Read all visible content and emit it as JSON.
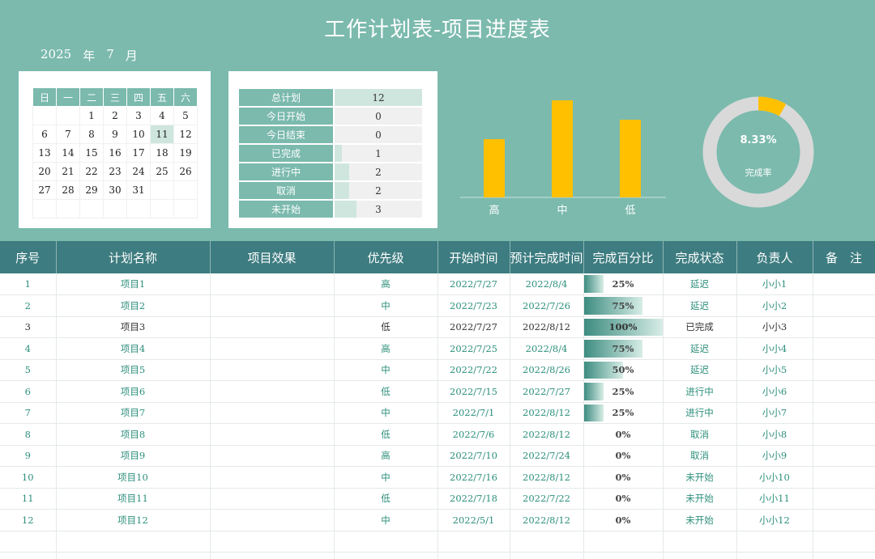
{
  "title": "工作计划表-项目进度表",
  "year": "2025",
  "year_unit": "年",
  "month": "7",
  "month_unit": "月",
  "calendar": {
    "weekdays": [
      "日",
      "一",
      "二",
      "三",
      "四",
      "五",
      "六"
    ],
    "weeks": [
      [
        "",
        "",
        "1",
        "2",
        "3",
        "4",
        "5"
      ],
      [
        "6",
        "7",
        "8",
        "9",
        "10",
        "11",
        "12"
      ],
      [
        "13",
        "14",
        "15",
        "16",
        "17",
        "18",
        "19"
      ],
      [
        "20",
        "21",
        "22",
        "23",
        "24",
        "25",
        "26"
      ],
      [
        "27",
        "28",
        "29",
        "30",
        "31",
        "",
        ""
      ],
      [
        "",
        "",
        "",
        "",
        "",
        "",
        ""
      ]
    ],
    "today": "11"
  },
  "summary": [
    {
      "label": "总计划",
      "value": "12",
      "fraction": 1.0
    },
    {
      "label": "今日开始",
      "value": "0",
      "fraction": 0
    },
    {
      "label": "今日结束",
      "value": "0",
      "fraction": 0
    },
    {
      "label": "已完成",
      "value": "1",
      "fraction": 0.083
    },
    {
      "label": "进行中",
      "value": "2",
      "fraction": 0.167
    },
    {
      "label": "取消",
      "value": "2",
      "fraction": 0.167
    },
    {
      "label": "未开始",
      "value": "3",
      "fraction": 0.25
    }
  ],
  "chart_data": [
    {
      "type": "bar",
      "categories": [
        "高",
        "中",
        "低"
      ],
      "values": [
        3,
        5,
        4
      ],
      "color": "#ffc000"
    },
    {
      "type": "pie",
      "values": [
        8.33,
        91.67
      ],
      "center_value": "8.33%",
      "center_label": "完成率",
      "colors": [
        "#ffc000",
        "#d9d9d9"
      ]
    }
  ],
  "table": {
    "headers": [
      "序号",
      "计划名称",
      "项目效果",
      "优先级",
      "开始时间",
      "预计完成时间",
      "完成百分比",
      "完成状态",
      "负责人",
      "备　注"
    ],
    "rows": [
      {
        "no": "1",
        "name": "项目1",
        "effect": "",
        "priority": "高",
        "start": "2022/7/27",
        "end": "2022/8/4",
        "pct_label": "25%",
        "pct": 25,
        "status": "延迟",
        "owner": "小小1",
        "note": ""
      },
      {
        "no": "2",
        "name": "项目2",
        "effect": "",
        "priority": "中",
        "start": "2022/7/23",
        "end": "2022/7/26",
        "pct_label": "75%",
        "pct": 75,
        "status": "延迟",
        "owner": "小小2",
        "note": ""
      },
      {
        "no": "3",
        "name": "项目3",
        "effect": "",
        "priority": "低",
        "start": "2022/7/27",
        "end": "2022/8/12",
        "pct_label": "100%",
        "pct": 100,
        "status": "已完成",
        "owner": "小小3",
        "note": ""
      },
      {
        "no": "4",
        "name": "项目4",
        "effect": "",
        "priority": "高",
        "start": "2022/7/25",
        "end": "2022/8/4",
        "pct_label": "75%",
        "pct": 75,
        "status": "延迟",
        "owner": "小小4",
        "note": ""
      },
      {
        "no": "5",
        "name": "项目5",
        "effect": "",
        "priority": "中",
        "start": "2022/7/22",
        "end": "2022/8/26",
        "pct_label": "50%",
        "pct": 50,
        "status": "延迟",
        "owner": "小小5",
        "note": ""
      },
      {
        "no": "6",
        "name": "项目6",
        "effect": "",
        "priority": "低",
        "start": "2022/7/15",
        "end": "2022/7/27",
        "pct_label": "25%",
        "pct": 25,
        "status": "进行中",
        "owner": "小小6",
        "note": ""
      },
      {
        "no": "7",
        "name": "项目7",
        "effect": "",
        "priority": "中",
        "start": "2022/7/1",
        "end": "2022/8/12",
        "pct_label": "25%",
        "pct": 25,
        "status": "进行中",
        "owner": "小小7",
        "note": ""
      },
      {
        "no": "8",
        "name": "项目8",
        "effect": "",
        "priority": "低",
        "start": "2022/7/6",
        "end": "2022/8/12",
        "pct_label": "0%",
        "pct": 0,
        "status": "取消",
        "owner": "小小8",
        "note": ""
      },
      {
        "no": "9",
        "name": "项目9",
        "effect": "",
        "priority": "高",
        "start": "2022/7/10",
        "end": "2022/7/24",
        "pct_label": "0%",
        "pct": 0,
        "status": "取消",
        "owner": "小小9",
        "note": ""
      },
      {
        "no": "10",
        "name": "项目10",
        "effect": "",
        "priority": "中",
        "start": "2022/7/16",
        "end": "2022/8/12",
        "pct_label": "0%",
        "pct": 0,
        "status": "未开始",
        "owner": "小小10",
        "note": ""
      },
      {
        "no": "11",
        "name": "项目11",
        "effect": "",
        "priority": "低",
        "start": "2022/7/18",
        "end": "2022/7/22",
        "pct_label": "0%",
        "pct": 0,
        "status": "未开始",
        "owner": "小小11",
        "note": ""
      },
      {
        "no": "12",
        "name": "项目12",
        "effect": "",
        "priority": "中",
        "start": "2022/5/1",
        "end": "2022/8/12",
        "pct_label": "0%",
        "pct": 0,
        "status": "未开始",
        "owner": "小小12",
        "note": ""
      }
    ]
  }
}
